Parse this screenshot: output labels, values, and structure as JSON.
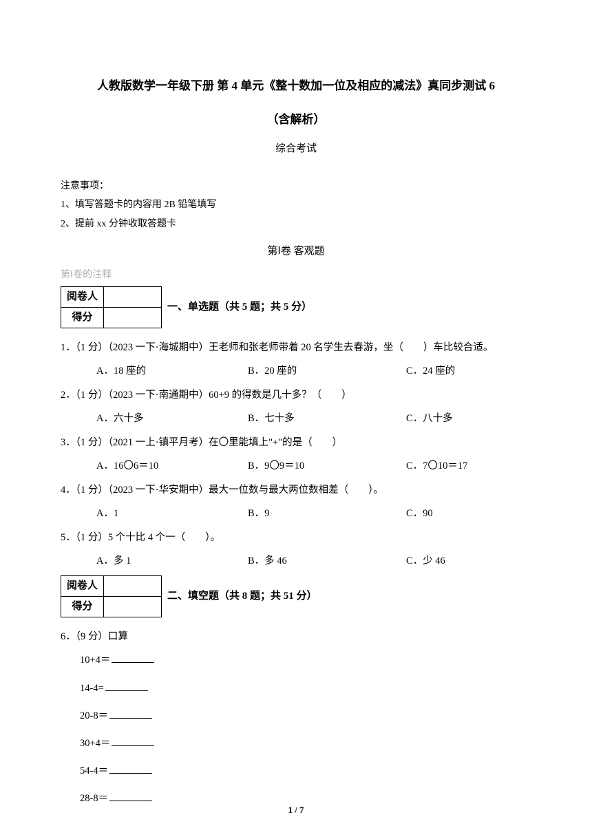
{
  "title_main": "人教版数学一年级下册 第 4 单元《整十数加一位及相应的减法》真同步测试 6",
  "title_sub": "（含解析）",
  "exam_type": "综合考试",
  "notes_header": "注意事项：",
  "notes": [
    "1、填写答题卡的内容用 2B 铅笔填写",
    "2、提前 xx 分钟收取答题卡"
  ],
  "part_header": "第Ⅰ卷 客观题",
  "part_note": "第Ⅰ卷的注释",
  "score_table": {
    "row1": "阅卷人",
    "row2": "得分"
  },
  "section1_title": "一、单选题（共 5 题；共 5 分）",
  "section2_title": "二、填空题（共 8 题；共 51 分）",
  "questions": [
    {
      "text": "1．（1 分）（2023 一下·海城期中）王老师和张老师带着 20 名学生去春游，坐（　　）车比较合适。",
      "a": "A．18 座的",
      "b": "B．20 座的",
      "c": "C．24 座的"
    },
    {
      "text": "2．（1 分）（2023 一下·南通期中）60+9 的得数是几十多？（　　）",
      "a": "A．六十多",
      "b": "B．七十多",
      "c": "C．八十多"
    },
    {
      "text": "3．（1 分）（2021 一上·镇平月考）在〇里能填上\"+\"的是（　　）",
      "a": "A．16〇6＝10",
      "b": "B．9〇9＝10",
      "c": "C．7〇10＝17"
    },
    {
      "text": "4．（1 分）（2023 一下·华安期中）最大一位数与最大两位数相差（　　）。",
      "a": "A．1",
      "b": "B．9",
      "c": "C．90"
    },
    {
      "text": "5．（1 分）5 个十比 4 个一（　　）。",
      "a": "A．多 1",
      "b": "B．多 46",
      "c": "C．少 46"
    }
  ],
  "q6_text": "6．（9 分）口算",
  "calc_items": [
    "10+4＝",
    "14-4=",
    "20-8＝",
    "30+4＝",
    "54-4＝",
    "28-8＝"
  ],
  "page_number": "1 / 7"
}
